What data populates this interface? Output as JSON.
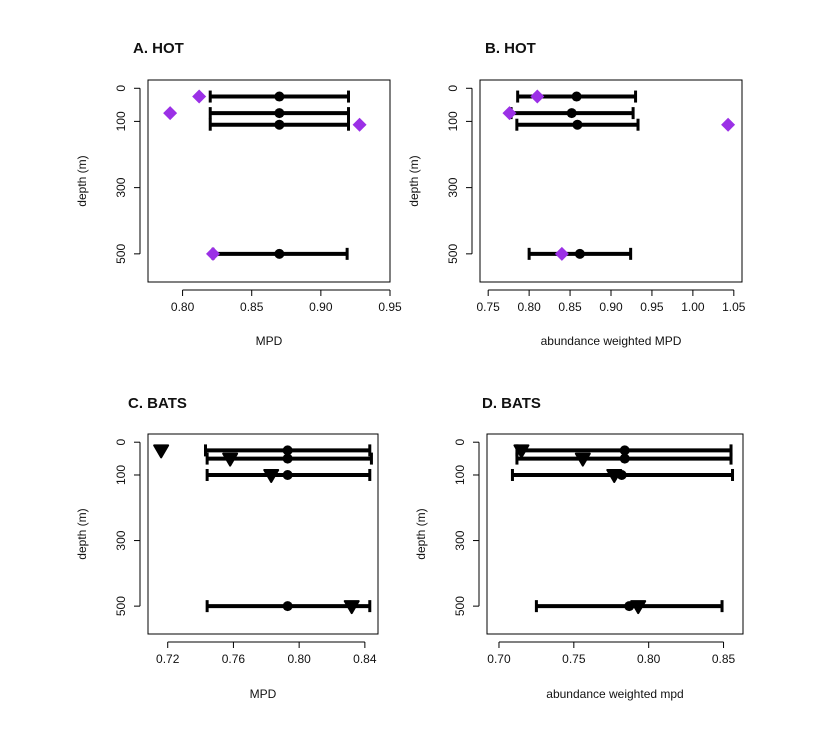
{
  "colors": {
    "observed_hot": "#9b30e6",
    "observed_bats": "#000000",
    "mean": "#000000",
    "frame": "#000000"
  },
  "chart_data": [
    {
      "id": "A",
      "type": "scatter",
      "title": "A. HOT",
      "xlabel": "MPD",
      "ylabel": "depth (m)",
      "xlim": [
        0.775,
        0.95
      ],
      "ylim": [
        -25,
        585
      ],
      "xticks": [
        0.8,
        0.85,
        0.9,
        0.95
      ],
      "xtick_labels": [
        "0.80",
        "0.85",
        "0.90",
        "0.95"
      ],
      "yticks": [
        0,
        100,
        300,
        500
      ],
      "ytick_labels": [
        "0",
        "100",
        "300",
        "500"
      ],
      "marker": "diamond",
      "marker_color": "#9b30e6",
      "rows": [
        {
          "depth": 25,
          "lower": 0.82,
          "mean": 0.87,
          "upper": 0.92,
          "observed": 0.812
        },
        {
          "depth": 75,
          "lower": 0.82,
          "mean": 0.87,
          "upper": 0.92,
          "observed": 0.791
        },
        {
          "depth": 110,
          "lower": 0.82,
          "mean": 0.87,
          "upper": 0.92,
          "observed": 0.928
        },
        {
          "depth": 500,
          "lower": 0.822,
          "mean": 0.87,
          "upper": 0.919,
          "observed": 0.822
        }
      ]
    },
    {
      "id": "B",
      "type": "scatter",
      "title": "B. HOT",
      "xlabel": "abundance weighted MPD",
      "ylabel": "depth (m)",
      "xlim": [
        0.74,
        1.06
      ],
      "ylim": [
        -25,
        585
      ],
      "xticks": [
        0.75,
        0.8,
        0.85,
        0.9,
        0.95,
        1.0,
        1.05
      ],
      "xtick_labels": [
        "0.75",
        "0.80",
        "0.85",
        "0.90",
        "0.95",
        "1.00",
        "1.05"
      ],
      "yticks": [
        0,
        100,
        300,
        500
      ],
      "ytick_labels": [
        "0",
        "100",
        "300",
        "500"
      ],
      "marker": "diamond",
      "marker_color": "#9b30e6",
      "rows": [
        {
          "depth": 25,
          "lower": 0.786,
          "mean": 0.858,
          "upper": 0.93,
          "observed": 0.81
        },
        {
          "depth": 75,
          "lower": 0.778,
          "mean": 0.852,
          "upper": 0.927,
          "observed": 0.776
        },
        {
          "depth": 110,
          "lower": 0.785,
          "mean": 0.859,
          "upper": 0.933,
          "observed": 1.043
        },
        {
          "depth": 500,
          "lower": 0.8,
          "mean": 0.862,
          "upper": 0.924,
          "observed": 0.84
        }
      ]
    },
    {
      "id": "C",
      "type": "scatter",
      "title": "C. BATS",
      "xlabel": "MPD",
      "ylabel": "depth (m)",
      "xlim": [
        0.708,
        0.848
      ],
      "ylim": [
        -25,
        585
      ],
      "xticks": [
        0.72,
        0.76,
        0.8,
        0.84
      ],
      "xtick_labels": [
        "0.72",
        "0.76",
        "0.80",
        "0.84"
      ],
      "yticks": [
        0,
        100,
        300,
        500
      ],
      "ytick_labels": [
        "0",
        "100",
        "300",
        "500"
      ],
      "marker": "triangle-down",
      "marker_color": "#000000",
      "rows": [
        {
          "depth": 25,
          "lower": 0.743,
          "mean": 0.793,
          "upper": 0.843,
          "observed": 0.716
        },
        {
          "depth": 50,
          "lower": 0.744,
          "mean": 0.793,
          "upper": 0.844,
          "observed": 0.758
        },
        {
          "depth": 100,
          "lower": 0.744,
          "mean": 0.793,
          "upper": 0.843,
          "observed": 0.783
        },
        {
          "depth": 500,
          "lower": 0.744,
          "mean": 0.793,
          "upper": 0.843,
          "observed": 0.832
        }
      ]
    },
    {
      "id": "D",
      "type": "scatter",
      "title": "D. BATS",
      "xlabel": "abundance weighted mpd",
      "ylabel": "depth (m)",
      "xlim": [
        0.692,
        0.863
      ],
      "ylim": [
        -25,
        585
      ],
      "xticks": [
        0.7,
        0.75,
        0.8,
        0.85
      ],
      "xtick_labels": [
        "0.70",
        "0.75",
        "0.80",
        "0.85"
      ],
      "yticks": [
        0,
        100,
        300,
        500
      ],
      "ytick_labels": [
        "0",
        "100",
        "300",
        "500"
      ],
      "marker": "triangle-down",
      "marker_color": "#000000",
      "rows": [
        {
          "depth": 25,
          "lower": 0.712,
          "mean": 0.784,
          "upper": 0.855,
          "observed": 0.715
        },
        {
          "depth": 50,
          "lower": 0.712,
          "mean": 0.784,
          "upper": 0.855,
          "observed": 0.756
        },
        {
          "depth": 100,
          "lower": 0.709,
          "mean": 0.782,
          "upper": 0.856,
          "observed": 0.777
        },
        {
          "depth": 500,
          "lower": 0.725,
          "mean": 0.787,
          "upper": 0.849,
          "observed": 0.793
        }
      ]
    }
  ]
}
